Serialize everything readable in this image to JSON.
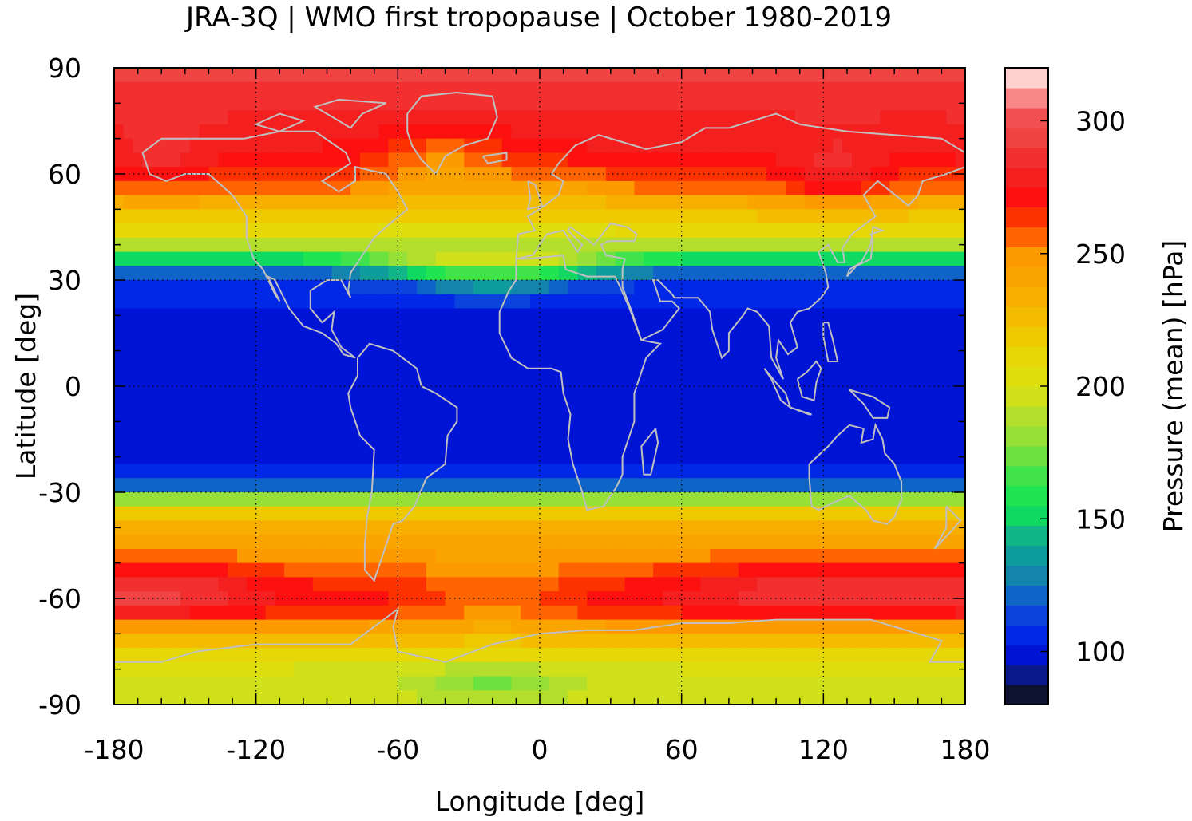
{
  "chart_data": {
    "type": "heatmap",
    "title": "JRA-3Q | WMO first tropopause | October 1980-2019",
    "xlabel": "Longitude [deg]",
    "ylabel": "Latitude [deg]",
    "colorbar_label": "Pressure (mean) [hPa]",
    "xlim": [
      -180,
      180
    ],
    "ylim": [
      -90,
      90
    ],
    "x_ticks": [
      "-180",
      "-120",
      "-60",
      "0",
      "60",
      "120",
      "180"
    ],
    "y_ticks": [
      "90",
      "60",
      "30",
      "0",
      "-30",
      "-60",
      "-90"
    ],
    "colorbar_ticks": [
      "100",
      "150",
      "200",
      "250",
      "300"
    ],
    "colorbar_range": [
      80,
      320
    ],
    "colorbar_levels": [
      {
        "from": 80,
        "to": 87.5,
        "color": "#0c1230"
      },
      {
        "from": 87.5,
        "to": 95,
        "color": "#0a1a8a"
      },
      {
        "from": 95,
        "to": 102.5,
        "color": "#0014d6"
      },
      {
        "from": 102.5,
        "to": 110,
        "color": "#0028e6"
      },
      {
        "from": 110,
        "to": 117.5,
        "color": "#0a44dc"
      },
      {
        "from": 117.5,
        "to": 125,
        "color": "#0f64c8"
      },
      {
        "from": 125,
        "to": 132.5,
        "color": "#1384ac"
      },
      {
        "from": 132.5,
        "to": 140,
        "color": "#0f9c9c"
      },
      {
        "from": 140,
        "to": 147.5,
        "color": "#12b48a"
      },
      {
        "from": 147.5,
        "to": 155,
        "color": "#10d860"
      },
      {
        "from": 155,
        "to": 162.5,
        "color": "#20e450"
      },
      {
        "from": 162.5,
        "to": 170,
        "color": "#40e44a"
      },
      {
        "from": 170,
        "to": 177.5,
        "color": "#6ce240"
      },
      {
        "from": 177.5,
        "to": 185,
        "color": "#96e038"
      },
      {
        "from": 185,
        "to": 192.5,
        "color": "#b4de2c"
      },
      {
        "from": 192.5,
        "to": 200,
        "color": "#d0e01a"
      },
      {
        "from": 200,
        "to": 207.5,
        "color": "#dede0e"
      },
      {
        "from": 207.5,
        "to": 215,
        "color": "#e6d808"
      },
      {
        "from": 215,
        "to": 222.5,
        "color": "#eec800"
      },
      {
        "from": 222.5,
        "to": 230,
        "color": "#f4bc00"
      },
      {
        "from": 230,
        "to": 237.5,
        "color": "#f8ae00"
      },
      {
        "from": 237.5,
        "to": 245,
        "color": "#faa400"
      },
      {
        "from": 245,
        "to": 252.5,
        "color": "#fc9a00"
      },
      {
        "from": 252.5,
        "to": 260,
        "color": "#fe6400"
      },
      {
        "from": 260,
        "to": 267.5,
        "color": "#fc3200"
      },
      {
        "from": 267.5,
        "to": 275,
        "color": "#fc1010"
      },
      {
        "from": 275,
        "to": 282.5,
        "color": "#f42020"
      },
      {
        "from": 282.5,
        "to": 290,
        "color": "#f23030"
      },
      {
        "from": 290,
        "to": 297.5,
        "color": "#f04444"
      },
      {
        "from": 297.5,
        "to": 305,
        "color": "#f25050"
      },
      {
        "from": 305,
        "to": 312.5,
        "color": "#f88888"
      },
      {
        "from": 312.5,
        "to": 320,
        "color": "#ffd0d0"
      }
    ],
    "zonal_mean_profile": {
      "lat": [
        90,
        80,
        70,
        62,
        56,
        50,
        45,
        40,
        36,
        32,
        28,
        20,
        10,
        0,
        -10,
        -20,
        -27,
        -30,
        -33,
        -36,
        -40,
        -45,
        -50,
        -55,
        -60,
        -65,
        -70,
        -75,
        -80,
        -85,
        -90
      ],
      "pressure": [
        292,
        285,
        278,
        270,
        255,
        228,
        213,
        190,
        150,
        118,
        106,
        100,
        100,
        100,
        100,
        101,
        112,
        150,
        200,
        220,
        235,
        243,
        252,
        265,
        270,
        262,
        235,
        215,
        200,
        195,
        197
      ]
    },
    "coastline_color": "#c0c0c0",
    "grid": true
  }
}
